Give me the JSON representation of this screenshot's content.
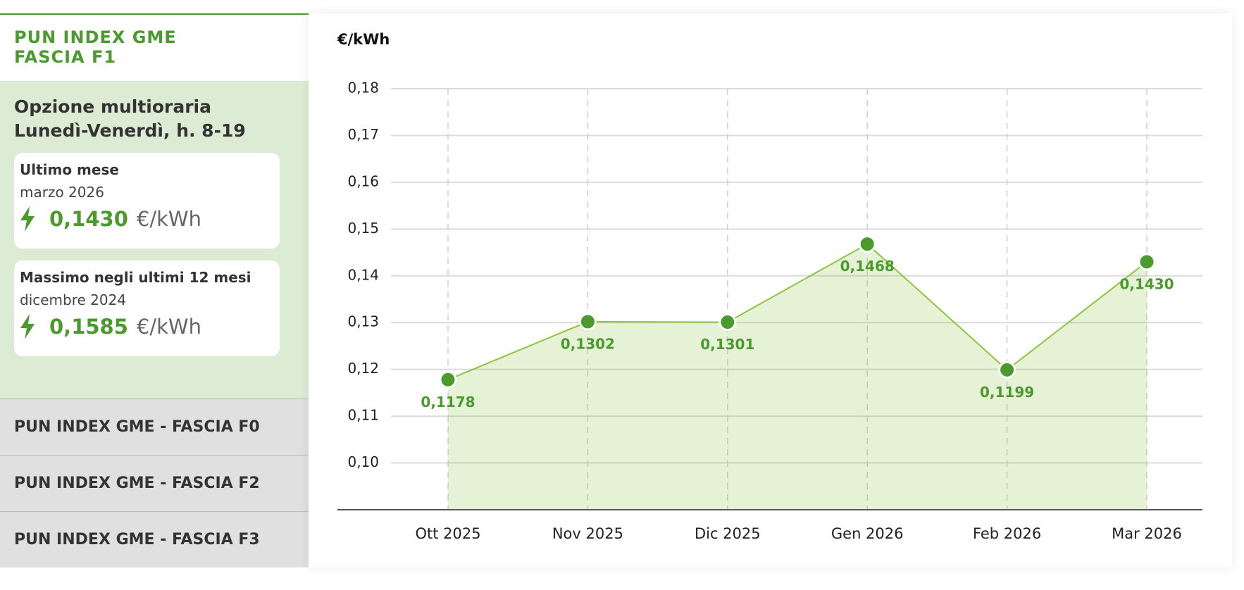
{
  "sidebar": {
    "title": "PUN INDEX GME FASCIA F1",
    "option": "Opzione multioraria Lunedì-Venerdì, h. 8-19",
    "cards": [
      {
        "label": "Ultimo mese",
        "period": "marzo 2026",
        "value": "0,1430",
        "unit": "€/kWh"
      },
      {
        "label": "Massimo negli ultimi 12 mesi",
        "period": "dicembre 2024",
        "value": "0,1585",
        "unit": "€/kWh"
      }
    ],
    "tabs": [
      "PUN INDEX GME - FASCIA F0",
      "PUN INDEX GME - FASCIA F2",
      "PUN INDEX GME - FASCIA F3"
    ]
  },
  "chart_data": {
    "type": "line",
    "y_label": "€/kWh",
    "categories": [
      "Ott 2025",
      "Nov 2025",
      "Dic 2025",
      "Gen 2026",
      "Feb 2026",
      "Mar 2026"
    ],
    "values": [
      0.1178,
      0.1302,
      0.1301,
      0.1468,
      0.1199,
      0.143
    ],
    "value_labels": [
      "0,1178",
      "0,1302",
      "0,1301",
      "0,1468",
      "0,1199",
      "0,1430"
    ],
    "color": "#8cc63f",
    "marker_color": "#4a9a2e",
    "ylim": [
      0.09,
      0.18
    ],
    "yticks": [
      {
        "value": 0.1,
        "label": "0,10"
      },
      {
        "value": 0.11,
        "label": "0,11"
      },
      {
        "value": 0.12,
        "label": "0,12"
      },
      {
        "value": 0.13,
        "label": "0,13"
      },
      {
        "value": 0.14,
        "label": "0,14"
      },
      {
        "value": 0.15,
        "label": "0,15"
      },
      {
        "value": 0.16,
        "label": "0,16"
      },
      {
        "value": 0.17,
        "label": "0,17"
      },
      {
        "value": 0.18,
        "label": "0,18"
      }
    ],
    "grid": true
  }
}
